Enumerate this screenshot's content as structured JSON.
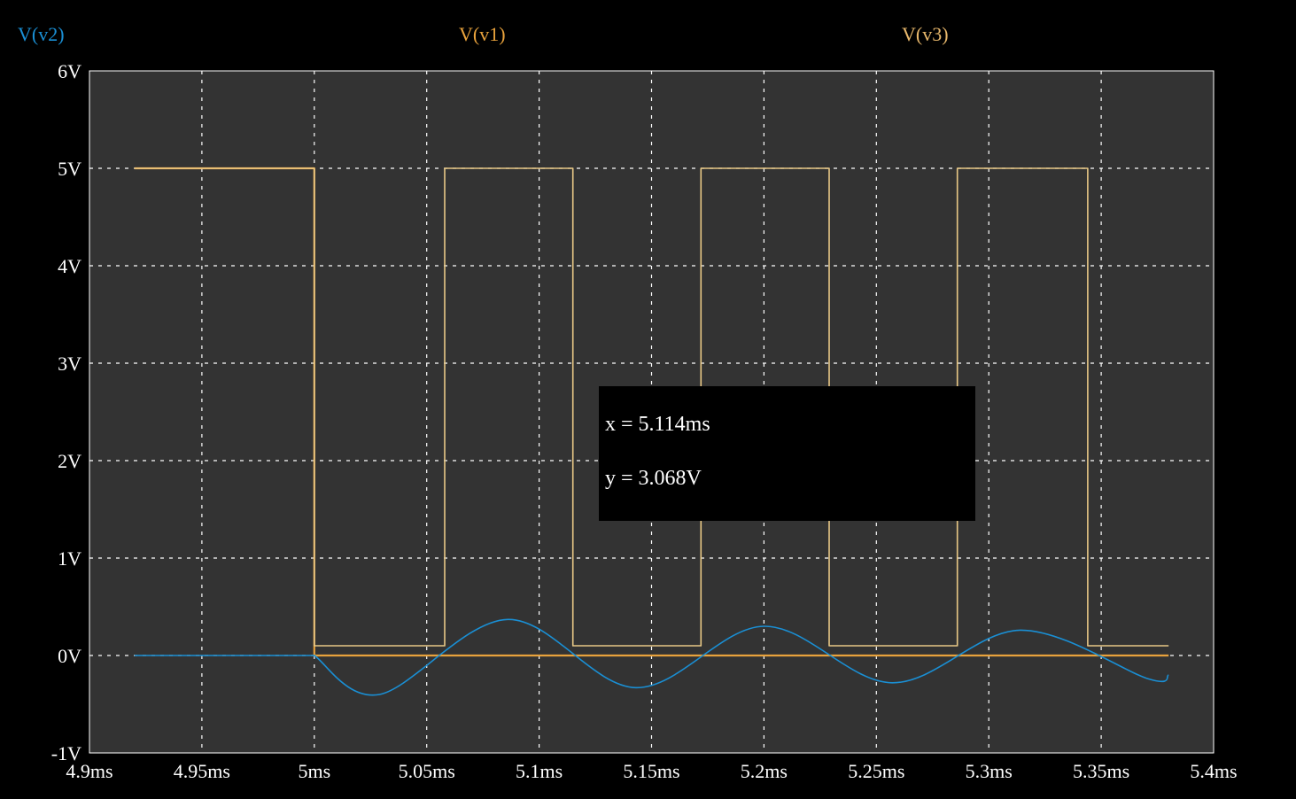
{
  "chart_data": {
    "type": "line",
    "legend": [
      {
        "name": "V(v2)",
        "color": "#1a8fd4"
      },
      {
        "name": "V(v1)",
        "color": "#e8a23c"
      },
      {
        "name": "V(v3)",
        "color": "#e8b86c"
      }
    ],
    "x_ticks": [
      "4.9ms",
      "4.95ms",
      "5ms",
      "5.05ms",
      "5.1ms",
      "5.15ms",
      "5.2ms",
      "5.25ms",
      "5.3ms",
      "5.35ms",
      "5.4ms"
    ],
    "y_ticks": [
      "6V",
      "5V",
      "4V",
      "3V",
      "2V",
      "1V",
      "0V",
      "-1V"
    ],
    "xlim_ms": [
      4.9,
      5.4
    ],
    "ylim_V": [
      -1,
      6
    ],
    "grid": true,
    "background": "#333333",
    "series": [
      {
        "name": "V(v1)",
        "color": "#e8a23c",
        "points": [
          [
            4.92,
            5.0
          ],
          [
            5.0,
            5.0
          ],
          [
            5.0,
            0.0
          ],
          [
            5.38,
            0.0
          ]
        ]
      },
      {
        "name": "V(v3)",
        "color": "#e8c886",
        "points": [
          [
            4.92,
            5.0
          ],
          [
            5.0,
            5.0
          ],
          [
            5.0,
            0.1
          ],
          [
            5.058,
            0.1
          ],
          [
            5.058,
            5.0
          ],
          [
            5.115,
            5.0
          ],
          [
            5.115,
            0.1
          ],
          [
            5.172,
            0.1
          ],
          [
            5.172,
            5.0
          ],
          [
            5.229,
            5.0
          ],
          [
            5.229,
            0.1
          ],
          [
            5.286,
            0.1
          ],
          [
            5.286,
            5.0
          ],
          [
            5.344,
            5.0
          ],
          [
            5.344,
            0.1
          ],
          [
            5.38,
            0.1
          ]
        ]
      },
      {
        "name": "V(v2)",
        "color": "#1a8fd4",
        "points": [
          [
            4.92,
            0.0
          ],
          [
            5.0,
            0.0
          ],
          [
            5.029,
            -0.4
          ],
          [
            5.086,
            0.37
          ],
          [
            5.143,
            -0.33
          ],
          [
            5.2,
            0.3
          ],
          [
            5.257,
            -0.28
          ],
          [
            5.314,
            0.26
          ],
          [
            5.371,
            -0.24
          ],
          [
            5.38,
            -0.2
          ]
        ]
      }
    ]
  },
  "cursor_readout": {
    "x_text": "x = 5.114ms",
    "y_text": "y = 3.068V"
  }
}
